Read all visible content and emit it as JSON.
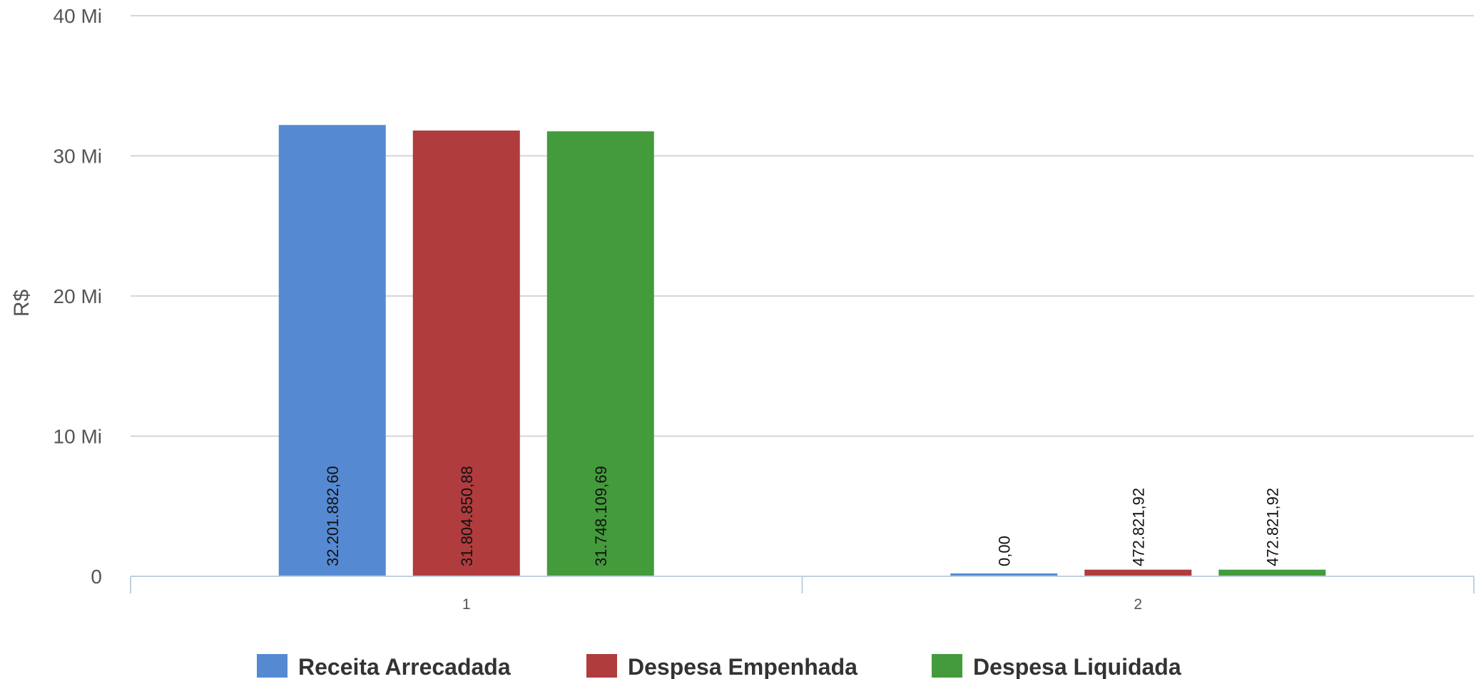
{
  "chart_data": {
    "type": "bar",
    "categories": [
      "1",
      "2"
    ],
    "series": [
      {
        "name": "Receita Arrecadada",
        "color": "#558ad3",
        "values": [
          32201882.6,
          0.0
        ],
        "labels": [
          "32.201.882,60",
          "0,00"
        ]
      },
      {
        "name": "Despesa Empenhada",
        "color": "#b03c3e",
        "values": [
          31804850.88,
          472821.92
        ],
        "labels": [
          "31.804.850,88",
          "472.821,92"
        ]
      },
      {
        "name": "Despesa Liquidada",
        "color": "#439b3b",
        "values": [
          31748109.69,
          472821.92
        ],
        "labels": [
          "31.748.109,69",
          "472.821,92"
        ]
      }
    ],
    "ylabel": "R$",
    "ylim": [
      0,
      40000000
    ],
    "yticks": [
      0,
      10000000,
      20000000,
      30000000,
      40000000
    ],
    "ytick_labels": [
      "0",
      "10 Mi",
      "20 Mi",
      "30 Mi",
      "40 Mi"
    ],
    "grid": true,
    "legend_position": "bottom"
  }
}
